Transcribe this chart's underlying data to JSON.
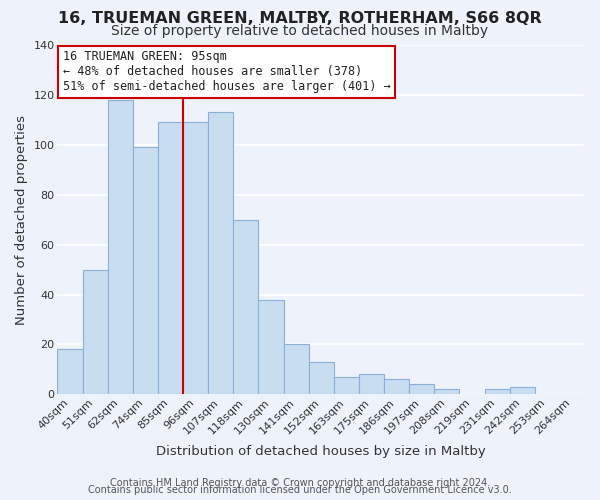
{
  "title": "16, TRUEMAN GREEN, MALTBY, ROTHERHAM, S66 8QR",
  "subtitle": "Size of property relative to detached houses in Maltby",
  "xlabel": "Distribution of detached houses by size in Maltby",
  "ylabel": "Number of detached properties",
  "footer_line1": "Contains HM Land Registry data © Crown copyright and database right 2024.",
  "footer_line2": "Contains public sector information licensed under the Open Government Licence v3.0.",
  "bin_labels": [
    "40sqm",
    "51sqm",
    "62sqm",
    "74sqm",
    "85sqm",
    "96sqm",
    "107sqm",
    "118sqm",
    "130sqm",
    "141sqm",
    "152sqm",
    "163sqm",
    "175sqm",
    "186sqm",
    "197sqm",
    "208sqm",
    "219sqm",
    "231sqm",
    "242sqm",
    "253sqm",
    "264sqm"
  ],
  "bar_heights": [
    18,
    50,
    118,
    99,
    109,
    109,
    113,
    70,
    38,
    20,
    13,
    7,
    8,
    6,
    4,
    2,
    0,
    2,
    3,
    0,
    0
  ],
  "bar_color": "#c9ddf0",
  "bar_edge_color": "#8ab0d8",
  "vline_x_index": 5,
  "vline_color": "#cc0000",
  "annotation_title": "16 TRUEMAN GREEN: 95sqm",
  "annotation_line1": "← 48% of detached houses are smaller (378)",
  "annotation_line2": "51% of semi-detached houses are larger (401) →",
  "annotation_box_color": "#ffffff",
  "annotation_box_edge_color": "#cc0000",
  "ylim": [
    0,
    140
  ],
  "yticks": [
    0,
    20,
    40,
    60,
    80,
    100,
    120,
    140
  ],
  "background_color": "#eef2fa",
  "grid_color": "#ffffff",
  "title_fontsize": 11.5,
  "subtitle_fontsize": 10,
  "axis_label_fontsize": 9.5,
  "tick_fontsize": 8,
  "footer_fontsize": 7,
  "ann_fontsize": 8.5
}
